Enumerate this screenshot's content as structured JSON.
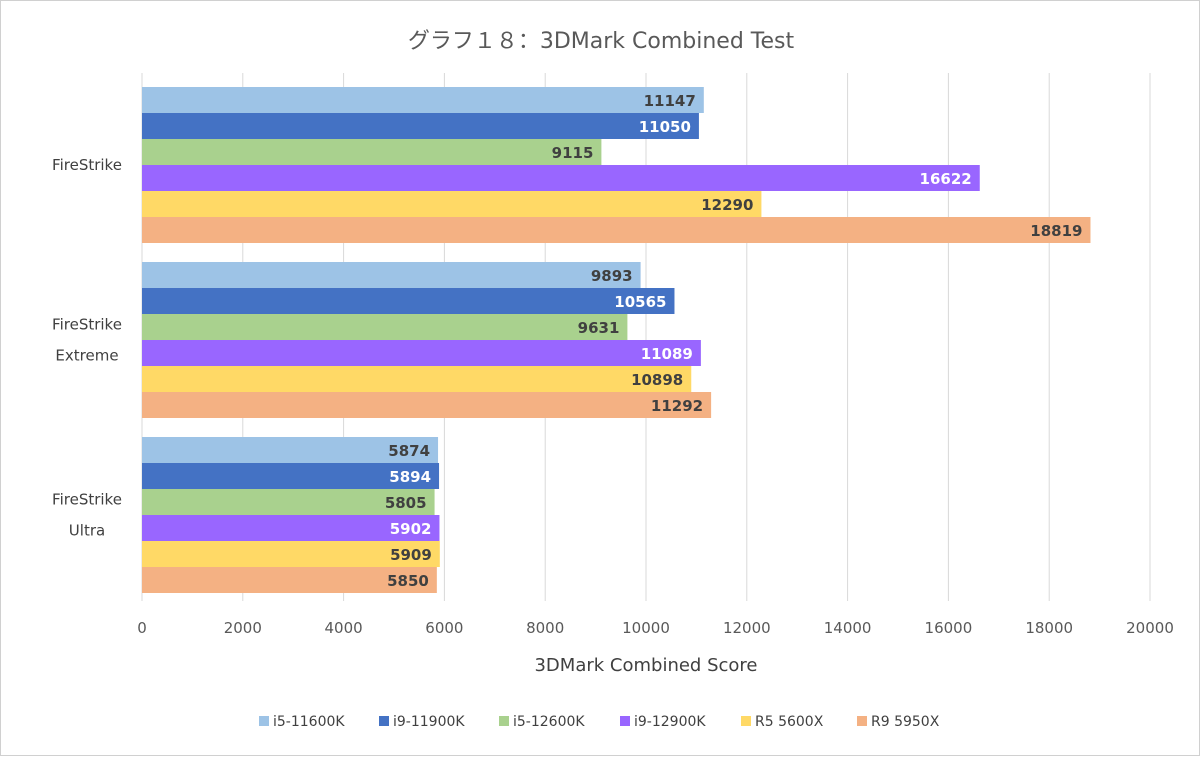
{
  "chart_data": {
    "type": "bar",
    "orientation": "horizontal",
    "title": "グラフ１８：3DMark Combined Test",
    "xlabel": "3DMark Combined Score",
    "ylabel": "",
    "xlim": [
      0,
      20000
    ],
    "x_ticks": [
      0,
      2000,
      4000,
      6000,
      8000,
      10000,
      12000,
      14000,
      16000,
      18000,
      20000
    ],
    "grid": true,
    "legend_position": "bottom",
    "categories": [
      {
        "lines": [
          "FireStrike"
        ]
      },
      {
        "lines": [
          "FireStrike",
          "Extreme"
        ]
      },
      {
        "lines": [
          "FireStrike",
          "Ultra"
        ]
      }
    ],
    "series": [
      {
        "name": "i5-11600K",
        "color": "#9dc3e6",
        "label_color": "#404040",
        "values": [
          11147,
          9893,
          5874
        ]
      },
      {
        "name": "i9-11900K",
        "color": "#4472c4",
        "label_color": "#ffffff",
        "values": [
          11050,
          10565,
          5894
        ]
      },
      {
        "name": "i5-12600K",
        "color": "#a9d18e",
        "label_color": "#404040",
        "values": [
          9115,
          9631,
          5805
        ]
      },
      {
        "name": "i9-12900K",
        "color": "#9966ff",
        "label_color": "#ffffff",
        "values": [
          16622,
          11089,
          5902
        ]
      },
      {
        "name": "R5 5600X",
        "color": "#ffd966",
        "label_color": "#404040",
        "values": [
          12290,
          10898,
          5909
        ]
      },
      {
        "name": "R9 5950X",
        "color": "#f4b183",
        "label_color": "#404040",
        "values": [
          18819,
          11292,
          5850
        ]
      }
    ]
  }
}
